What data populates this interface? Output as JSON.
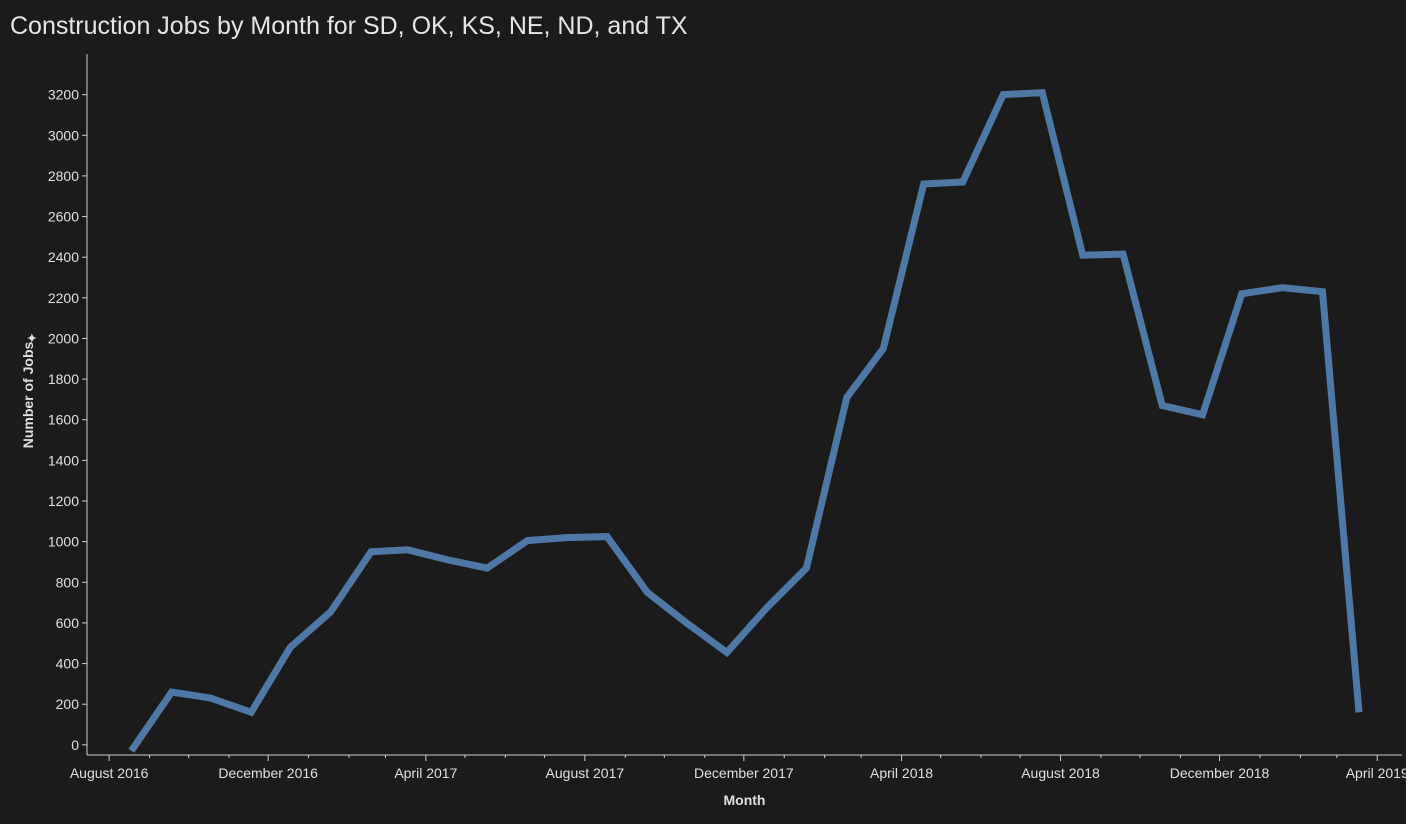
{
  "chart_data": {
    "type": "line",
    "title": "Construction Jobs by Month for SD, OK, KS, NE, ND, and TX",
    "xlabel": "Month",
    "ylabel": "Number of Jobs",
    "ylim": [
      -50,
      3400
    ],
    "yticks": [
      0,
      200,
      400,
      600,
      800,
      1000,
      1200,
      1400,
      1600,
      1800,
      2000,
      2200,
      2400,
      2600,
      2800,
      3000,
      3200
    ],
    "xlim": [
      "2016-07-15",
      "2019-04-20"
    ],
    "xticks": [
      {
        "date": "2016-08-01",
        "label": "August 2016"
      },
      {
        "date": "2016-12-01",
        "label": "December 2016"
      },
      {
        "date": "2017-04-01",
        "label": "April 2017"
      },
      {
        "date": "2017-08-01",
        "label": "August 2017"
      },
      {
        "date": "2017-12-01",
        "label": "December 2017"
      },
      {
        "date": "2018-04-01",
        "label": "April 2018"
      },
      {
        "date": "2018-08-01",
        "label": "August 2018"
      },
      {
        "date": "2018-12-01",
        "label": "December 2018"
      },
      {
        "date": "2019-04-01",
        "label": "April 2019"
      }
    ],
    "minor_tick_months": [
      "2016-09-01",
      "2016-10-01",
      "2016-11-01",
      "2017-01-01",
      "2017-02-01",
      "2017-03-01",
      "2017-05-01",
      "2017-06-01",
      "2017-07-01",
      "2017-09-01",
      "2017-10-01",
      "2017-11-01",
      "2018-01-01",
      "2018-02-01",
      "2018-03-01",
      "2018-05-01",
      "2018-06-01",
      "2018-07-01",
      "2018-09-01",
      "2018-10-01",
      "2018-11-01",
      "2019-01-01",
      "2019-02-01",
      "2019-03-01"
    ],
    "series": [
      {
        "color": "#4e79a7",
        "x": [
          "2016-08-18",
          "2016-09-18",
          "2016-10-18",
          "2016-11-18",
          "2016-12-18",
          "2017-01-18",
          "2017-02-18",
          "2017-03-18",
          "2017-04-18",
          "2017-05-18",
          "2017-06-18",
          "2017-07-18",
          "2017-08-18",
          "2017-09-18",
          "2017-10-18",
          "2017-11-18",
          "2017-12-18",
          "2018-01-18",
          "2018-02-18",
          "2018-03-18",
          "2018-04-18",
          "2018-05-18",
          "2018-06-18",
          "2018-07-18",
          "2018-08-18",
          "2018-09-18",
          "2018-10-18",
          "2018-11-18",
          "2018-12-18",
          "2019-01-18",
          "2019-02-18",
          "2019-03-18"
        ],
        "values": [
          -30,
          260,
          230,
          160,
          480,
          655,
          950,
          960,
          910,
          870,
          1005,
          1020,
          1025,
          750,
          600,
          455,
          670,
          870,
          1710,
          1950,
          2760,
          2770,
          3200,
          3210,
          2410,
          2415,
          1670,
          1625,
          2220,
          2250,
          2230,
          160
        ]
      }
    ]
  }
}
